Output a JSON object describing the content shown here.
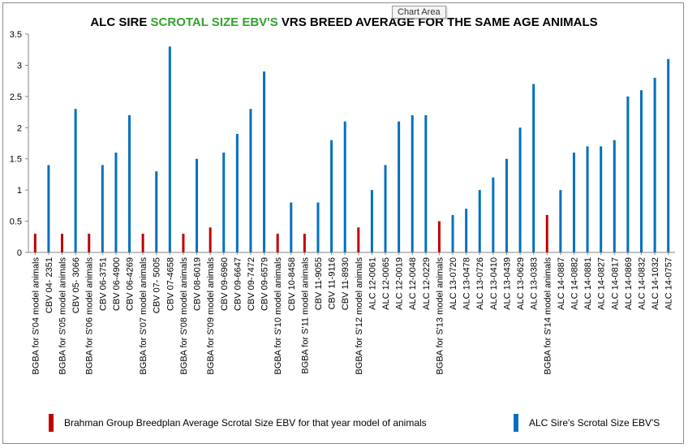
{
  "title": {
    "part1": "ALC SIRE ",
    "part2": "SCROTAL SIZE EBV'S",
    "part3": " VRS BREED AVERAGE FOR THE SAME AGE ANIMALS"
  },
  "tooltip": "Chart Area",
  "colors": {
    "bgba": "#c00000",
    "alc": "#0070c0",
    "highlight": "#33a02c"
  },
  "chart_data": {
    "type": "bar",
    "ylim": [
      0,
      3.5
    ],
    "yticks": [
      "0",
      "0.5",
      "1",
      "1.5",
      "2",
      "2.5",
      "3",
      "3.5"
    ],
    "series": [
      {
        "name": "Brahman Group Breedplan Average Scrotal Size EBV for that year model of animals",
        "key": "bgba"
      },
      {
        "name": "ALC Sire's Scrotal Size EBV'S",
        "key": "alc"
      }
    ],
    "categories": [
      {
        "label": "BGBA for S'04 model animals",
        "value": 0.3,
        "series": "bgba"
      },
      {
        "label": "CBV 04- 2351",
        "value": 1.4,
        "series": "alc"
      },
      {
        "label": "BGBA for S'05 model animals",
        "value": 0.3,
        "series": "bgba"
      },
      {
        "label": "CBV 05- 3066",
        "value": 2.3,
        "series": "alc"
      },
      {
        "label": "BGBA for S'06 model animals",
        "value": 0.3,
        "series": "bgba"
      },
      {
        "label": "CBV 06-3751",
        "value": 1.4,
        "series": "alc"
      },
      {
        "label": "CBV 06-4900",
        "value": 1.6,
        "series": "alc"
      },
      {
        "label": "CBV 06-4269",
        "value": 2.2,
        "series": "alc"
      },
      {
        "label": "BGBA for S'07 model animals",
        "value": 0.3,
        "series": "bgba"
      },
      {
        "label": "CBV 07- 5005",
        "value": 1.3,
        "series": "alc"
      },
      {
        "label": "CBV 07-4658",
        "value": 3.3,
        "series": "alc"
      },
      {
        "label": "BGBA for S'08 model animals",
        "value": 0.3,
        "series": "bgba"
      },
      {
        "label": "CBV 08-6019",
        "value": 1.5,
        "series": "alc"
      },
      {
        "label": "BGBA for S'09 model animals",
        "value": 0.4,
        "series": "bgba"
      },
      {
        "label": "CBV 09-6960",
        "value": 1.6,
        "series": "alc"
      },
      {
        "label": "CBV 09-6647",
        "value": 1.9,
        "series": "alc"
      },
      {
        "label": "CBV 09-7472",
        "value": 2.3,
        "series": "alc"
      },
      {
        "label": "CBV 09-6579",
        "value": 2.9,
        "series": "alc"
      },
      {
        "label": "BGBA for S'10 model animals",
        "value": 0.3,
        "series": "bgba"
      },
      {
        "label": "CBV 10-8458",
        "value": 0.8,
        "series": "alc"
      },
      {
        "label": "BGBA for S'11 model animals",
        "value": 0.3,
        "series": "bgba"
      },
      {
        "label": "CBV 11-9055",
        "value": 0.8,
        "series": "alc"
      },
      {
        "label": "CBV 11-9116",
        "value": 1.8,
        "series": "alc"
      },
      {
        "label": "CBV 11-8930",
        "value": 2.1,
        "series": "alc"
      },
      {
        "label": "BGBA for S'12 model animals",
        "value": 0.4,
        "series": "bgba"
      },
      {
        "label": "ALC 12-0061",
        "value": 1.0,
        "series": "alc"
      },
      {
        "label": "ALC 12-0065",
        "value": 1.4,
        "series": "alc"
      },
      {
        "label": "ALC 12-0019",
        "value": 2.1,
        "series": "alc"
      },
      {
        "label": "ALC 12-0048",
        "value": 2.2,
        "series": "alc"
      },
      {
        "label": "ALC 12-0229",
        "value": 2.2,
        "series": "alc"
      },
      {
        "label": "BGBA for S'13 model animals",
        "value": 0.5,
        "series": "bgba"
      },
      {
        "label": "ALC 13-0720",
        "value": 0.6,
        "series": "alc"
      },
      {
        "label": "ALC 13-0478",
        "value": 0.7,
        "series": "alc"
      },
      {
        "label": "ALC 13-0726",
        "value": 1.0,
        "series": "alc"
      },
      {
        "label": "ALC 13-0410",
        "value": 1.2,
        "series": "alc"
      },
      {
        "label": "ALC 13-0439",
        "value": 1.5,
        "series": "alc"
      },
      {
        "label": "ALC 13-0629",
        "value": 2.0,
        "series": "alc"
      },
      {
        "label": "ALC 13-0383",
        "value": 2.7,
        "series": "alc"
      },
      {
        "label": "BGBA for S'14 model animals",
        "value": 0.6,
        "series": "bgba"
      },
      {
        "label": "ALC 14-0887",
        "value": 1.0,
        "series": "alc"
      },
      {
        "label": "ALC 14-0882",
        "value": 1.6,
        "series": "alc"
      },
      {
        "label": "ALC 14-0881",
        "value": 1.7,
        "series": "alc"
      },
      {
        "label": "ALC 14-0827",
        "value": 1.7,
        "series": "alc"
      },
      {
        "label": "ALC 14-0817",
        "value": 1.8,
        "series": "alc"
      },
      {
        "label": "ALC 14-0869",
        "value": 2.5,
        "series": "alc"
      },
      {
        "label": "ALC 14-0832",
        "value": 2.6,
        "series": "alc"
      },
      {
        "label": "ALC 14-1032",
        "value": 2.8,
        "series": "alc"
      },
      {
        "label": "ALC 14-0757",
        "value": 3.1,
        "series": "alc"
      }
    ]
  },
  "legend": {
    "bgba_label": "Brahman Group Breedplan Average Scrotal Size EBV for that year model of animals",
    "alc_label": "ALC Sire's Scrotal Size EBV'S"
  }
}
